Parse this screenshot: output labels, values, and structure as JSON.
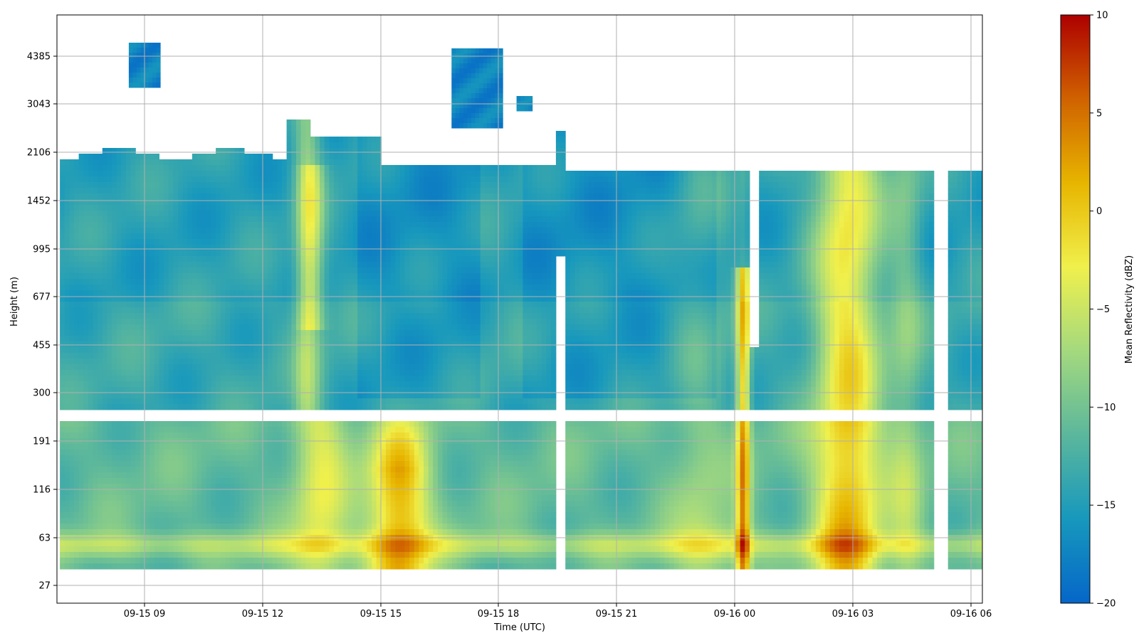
{
  "chart_data": {
    "type": "heatmap",
    "title": "",
    "xlabel": "Time (UTC)",
    "ylabel": "Height (m)",
    "x_ticks": [
      "09-15 09",
      "09-15 12",
      "09-15 15",
      "09-15 18",
      "09-15 21",
      "09-16 00",
      "09-16 03",
      "09-16 06"
    ],
    "x_range": [
      "09-15 06:50",
      "09-16 06:15"
    ],
    "y_ticks": [
      27,
      63,
      116,
      191,
      300,
      455,
      677,
      995,
      1452,
      2106,
      3043,
      4385
    ],
    "y_scale": "nonlinear (approximately logarithmic)",
    "grid": true,
    "colorbar": {
      "label": "Mean Reflectivity (dBZ)",
      "ticks": [
        10,
        5,
        0,
        -5,
        -10,
        -15,
        -20
      ],
      "range": [
        -20,
        10
      ],
      "colors": [
        "#0566c8",
        "#1798bd",
        "#5bb79c",
        "#a4d97e",
        "#f0f04c",
        "#e7b500",
        "#d06200",
        "#ad0000"
      ]
    },
    "data_gap_height_range_m": [
      215,
      245
    ],
    "observed_features": [
      {
        "description": "low-level enhanced reflectivity",
        "time": "09-15 15:20",
        "height_m": [
          27,
          200
        ],
        "value_dbz": 5
      },
      {
        "description": "narrow column of strong reflectivity",
        "time": "09-16 00:10",
        "height_m": [
          27,
          850
        ],
        "value_dbz": 6
      },
      {
        "description": "broad column of enhanced reflectivity",
        "time": "09-16 02:50",
        "height_m": [
          27,
          1800
        ],
        "value_dbz": 2
      },
      {
        "description": "elevated cloud layer",
        "time": "09-15 09:00",
        "height_m": [
          3700,
          5000
        ],
        "value_dbz": -17
      },
      {
        "description": "elevated cloud layer",
        "time": "09-15 17:30",
        "height_m": [
          2800,
          4700
        ],
        "value_dbz": -18
      }
    ]
  }
}
